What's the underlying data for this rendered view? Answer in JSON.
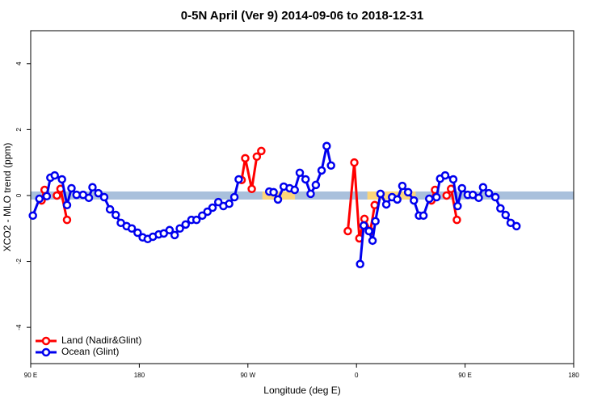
{
  "chart_data": {
    "type": "line",
    "title": "0-5N April (Ver 9)   2014-09-06 to 2018-12-31",
    "xlabel": "Longitude (deg E)",
    "ylabel": "XCO2 - MLO trend (ppm)",
    "xlim": [
      90,
      540
    ],
    "ylim": [
      -5.1,
      5
    ],
    "xticks": [
      {
        "value": 90,
        "label": "90 E"
      },
      180,
      {
        "value": 270,
        "label": "90 W"
      },
      {
        "value": 360,
        "label": "0"
      },
      {
        "value": 450,
        "label": "90 E"
      },
      {
        "value": 540,
        "label": "180"
      }
    ],
    "yticks": [
      -4,
      -2,
      0,
      2,
      4
    ],
    "legend": "bottom-left",
    "reference_band": {
      "y": 0,
      "color": "#a9c0dc",
      "land_color": "#fcd57a",
      "land_spans": [
        [
          282,
          309
        ],
        [
          369,
          409
        ]
      ]
    },
    "series": [
      {
        "name": "Land (Nadir&Glint)",
        "color": "#ff0000",
        "x": [
          99.0,
          101.5,
          null,
          111.7,
          114.7,
          120.1,
          null,
          264.8,
          267.8,
          273.2,
          277.4,
          281.1,
          null,
          352.8,
          358.2,
          362.4,
          366.6,
          371.5,
          375.1,
          null,
          422.1,
          425.1,
          null,
          434.7,
          438.4,
          443.2
        ],
        "values": [
          -0.15,
          0.17,
          null,
          0.0,
          0.2,
          -0.74,
          null,
          0.47,
          1.13,
          0.2,
          1.18,
          1.35,
          null,
          -1.08,
          1.0,
          -1.3,
          -0.71,
          -1.08,
          -0.29,
          null,
          -0.15,
          0.17,
          null,
          0.0,
          0.2,
          -0.74
        ]
      },
      {
        "name": "Ocean (Glint)",
        "color": "#0000ee",
        "x": [
          91.8,
          97.2,
          103.3,
          106.3,
          109.9,
          115.9,
          120.1,
          123.8,
          128.0,
          133.4,
          138.2,
          141.2,
          146.1,
          150.9,
          155.7,
          160.5,
          164.7,
          169.5,
          173.8,
          178.6,
          182.8,
          187.0,
          191.3,
          196.1,
          200.3,
          205.1,
          209.3,
          213.6,
          218.4,
          223.2,
          227.4,
          232.2,
          236.5,
          240.7,
          245.5,
          249.7,
          254.5,
          258.8,
          262.4,
          null,
          287.7,
          291.3,
          294.9,
          299.7,
          304.6,
          308.8,
          313.0,
          317.8,
          322.0,
          326.3,
          331.1,
          335.3,
          338.9,
          null,
          363.0,
          366.0,
          370.3,
          373.3,
          375.7,
          379.9,
          384.7,
          389.5,
          393.8,
          398.0,
          402.8,
          407.6,
          411.8,
          415.5,
          420.3,
          426.3,
          429.3,
          433.5,
          440.2,
          443.8,
          447.4,
          452.2,
          456.4,
          461.3,
          464.9,
          469.7,
          475.1,
          479.3,
          483.6,
          487.8,
          492.6
        ],
        "values": [
          -0.61,
          -0.1,
          -0.02,
          0.54,
          0.61,
          0.49,
          -0.29,
          0.22,
          0.02,
          0.02,
          -0.07,
          0.25,
          0.07,
          -0.05,
          -0.42,
          -0.59,
          -0.83,
          -0.93,
          -1.0,
          -1.13,
          -1.27,
          -1.32,
          -1.25,
          -1.18,
          -1.15,
          -1.05,
          -1.2,
          -1.0,
          -0.88,
          -0.74,
          -0.74,
          -0.61,
          -0.49,
          -0.37,
          -0.2,
          -0.32,
          -0.25,
          -0.05,
          0.49,
          null,
          0.12,
          0.1,
          -0.12,
          0.27,
          0.22,
          0.17,
          0.69,
          0.49,
          0.05,
          0.32,
          0.76,
          1.5,
          0.91,
          null,
          -2.08,
          -0.91,
          -1.08,
          -1.37,
          -0.78,
          0.05,
          -0.27,
          -0.05,
          -0.12,
          0.29,
          0.1,
          -0.15,
          -0.61,
          -0.61,
          -0.1,
          -0.05,
          0.51,
          0.61,
          0.49,
          -0.32,
          0.22,
          0.02,
          0.02,
          -0.07,
          0.25,
          0.07,
          -0.05,
          -0.39,
          -0.59,
          -0.83,
          -0.93
        ]
      }
    ]
  }
}
